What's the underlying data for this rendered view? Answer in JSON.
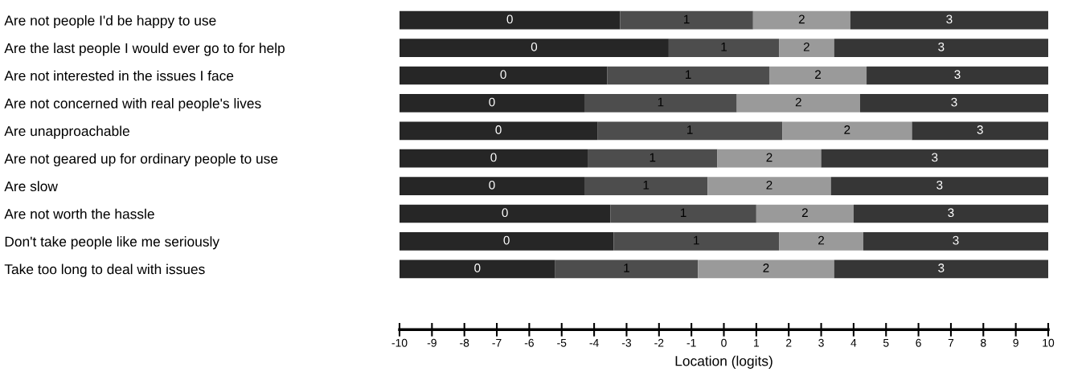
{
  "chart_data": {
    "type": "bar",
    "orientation": "horizontal",
    "xlabel": "Location (logits)",
    "categories": [
      "Are not people I'd be happy to use",
      "Are the last people I would ever go to for help",
      "Are not interested in the issues I face",
      "Are not concerned with real people's lives",
      "Are unapproachable",
      "Are not geared up for ordinary people to use",
      "Are slow",
      "Are not worth the hassle",
      "Don't take people like me seriously",
      "Take too long to deal with issues"
    ],
    "series": [
      {
        "name": "0",
        "color": "#262626",
        "base": [
          -10,
          -10,
          -10,
          -10,
          -10,
          -10,
          -10,
          -10,
          -10,
          -10
        ],
        "values": [
          6.8,
          8.3,
          6.4,
          5.7,
          6.1,
          5.8,
          5.7,
          6.5,
          6.6,
          4.8
        ]
      },
      {
        "name": "1",
        "color": "#4d4d4d",
        "base": [
          -3.2,
          -1.7,
          -3.6,
          -4.3,
          -3.9,
          -4.2,
          -4.3,
          -3.5,
          -3.4,
          -5.2
        ],
        "values": [
          4.1,
          3.4,
          5.0,
          4.7,
          5.7,
          4.0,
          3.8,
          4.5,
          5.1,
          4.4
        ]
      },
      {
        "name": "2",
        "color": "#9a9a9a",
        "base": [
          0.9,
          1.7,
          1.4,
          0.4,
          1.8,
          -0.2,
          -0.5,
          1.0,
          1.7,
          -0.8
        ],
        "values": [
          3.0,
          1.7,
          3.0,
          3.8,
          4.0,
          3.2,
          3.8,
          3.0,
          2.6,
          4.2
        ]
      },
      {
        "name": "3",
        "color": "#363636",
        "base": [
          3.9,
          3.4,
          4.4,
          4.2,
          5.8,
          3.0,
          3.3,
          4.0,
          4.3,
          3.4
        ],
        "values": [
          6.1,
          6.6,
          5.6,
          5.8,
          4.2,
          7.0,
          6.7,
          6.0,
          5.7,
          6.6
        ]
      }
    ],
    "xlim": [
      -10,
      10
    ],
    "xticks": [
      -10,
      -9,
      -8,
      -7,
      -6,
      -5,
      -4,
      -3,
      -2,
      -1,
      0,
      1,
      2,
      3,
      4,
      5,
      6,
      7,
      8,
      9,
      10
    ],
    "grid": false
  }
}
